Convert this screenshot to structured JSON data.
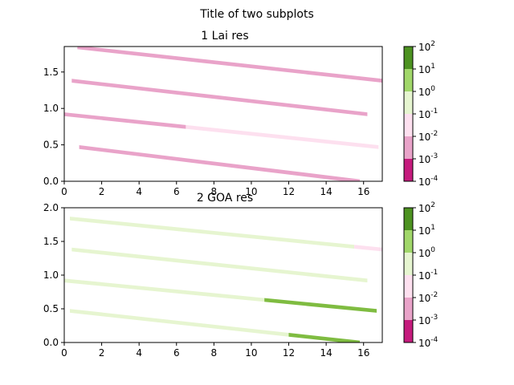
{
  "figure": {
    "suptitle": "Title of two subplots"
  },
  "colorbar": {
    "tick_base": "10",
    "tick_exponents": [
      "-4",
      "-3",
      "-2",
      "-1",
      "0",
      "1",
      "2"
    ],
    "bands": [
      "#c51b7d",
      "#e9a3c9",
      "#fde0ef",
      "#e6f5d0",
      "#a1d76a",
      "#4d9221"
    ]
  },
  "chart_data": [
    {
      "type": "heatmap",
      "title": "1 Lai res",
      "xlabel": "",
      "ylabel": "",
      "xlim": [
        0,
        17
      ],
      "ylim": [
        0,
        1.85
      ],
      "xticks": [
        "0",
        "2",
        "4",
        "6",
        "8",
        "10",
        "12",
        "14",
        "16"
      ],
      "yticks": [
        "0.0",
        "0.5",
        "1.0",
        "1.5"
      ],
      "yticks_values": [
        0,
        0.5,
        1.0,
        1.5
      ],
      "colorscale": "log",
      "color_range": [
        0.0001,
        100
      ],
      "strips": [
        {
          "x": [
            0.8,
            15.8
          ],
          "y": [
            0.47,
            0.0
          ],
          "segments": [
            {
              "from": 0.8,
              "to": 15.8,
              "color": "#e9a3c9"
            }
          ]
        },
        {
          "x": [
            0.0,
            16.8
          ],
          "y": [
            0.92,
            0.47
          ],
          "segments": [
            {
              "from": 0.0,
              "to": 6.5,
              "color": "#e9a3c9"
            },
            {
              "from": 6.5,
              "to": 16.8,
              "color": "#fde0ef"
            }
          ]
        },
        {
          "x": [
            0.4,
            16.2
          ],
          "y": [
            1.38,
            0.92
          ],
          "segments": [
            {
              "from": 0.4,
              "to": 16.2,
              "color": "#e9a3c9"
            }
          ]
        },
        {
          "x": [
            0.7,
            17.0
          ],
          "y": [
            1.84,
            1.38
          ],
          "segments": [
            {
              "from": 0.7,
              "to": 17.0,
              "color": "#e9a3c9"
            }
          ]
        }
      ]
    },
    {
      "type": "heatmap",
      "title": "2 GOA res",
      "xlabel": "",
      "ylabel": "",
      "xlim": [
        0,
        17
      ],
      "ylim": [
        0,
        2.0
      ],
      "xticks": [
        "0",
        "2",
        "4",
        "6",
        "8",
        "10",
        "12",
        "14",
        "16"
      ],
      "yticks": [
        "0.0",
        "0.5",
        "1.0",
        "1.5",
        "2.0"
      ],
      "yticks_values": [
        0,
        0.5,
        1.0,
        1.5,
        2.0
      ],
      "colorscale": "log",
      "color_range": [
        0.0001,
        100
      ],
      "strips": [
        {
          "x": [
            0.3,
            15.8
          ],
          "y": [
            0.47,
            0.0
          ],
          "segments": [
            {
              "from": 0.3,
              "to": 12.0,
              "color": "#e6f5d0"
            },
            {
              "from": 12.0,
              "to": 15.8,
              "color": "#7fbc41"
            }
          ]
        },
        {
          "x": [
            0.0,
            16.7
          ],
          "y": [
            0.92,
            0.47
          ],
          "segments": [
            {
              "from": 0.0,
              "to": 10.7,
              "color": "#e6f5d0"
            },
            {
              "from": 10.7,
              "to": 16.7,
              "color": "#7fbc41"
            }
          ]
        },
        {
          "x": [
            0.4,
            16.2
          ],
          "y": [
            1.38,
            0.92
          ],
          "segments": [
            {
              "from": 0.4,
              "to": 16.2,
              "color": "#e6f5d0"
            }
          ]
        },
        {
          "x": [
            0.3,
            17.0
          ],
          "y": [
            1.84,
            1.38
          ],
          "segments": [
            {
              "from": 0.3,
              "to": 15.5,
              "color": "#e6f5d0"
            },
            {
              "from": 15.5,
              "to": 17.0,
              "color": "#fde0ef"
            }
          ]
        }
      ]
    }
  ]
}
